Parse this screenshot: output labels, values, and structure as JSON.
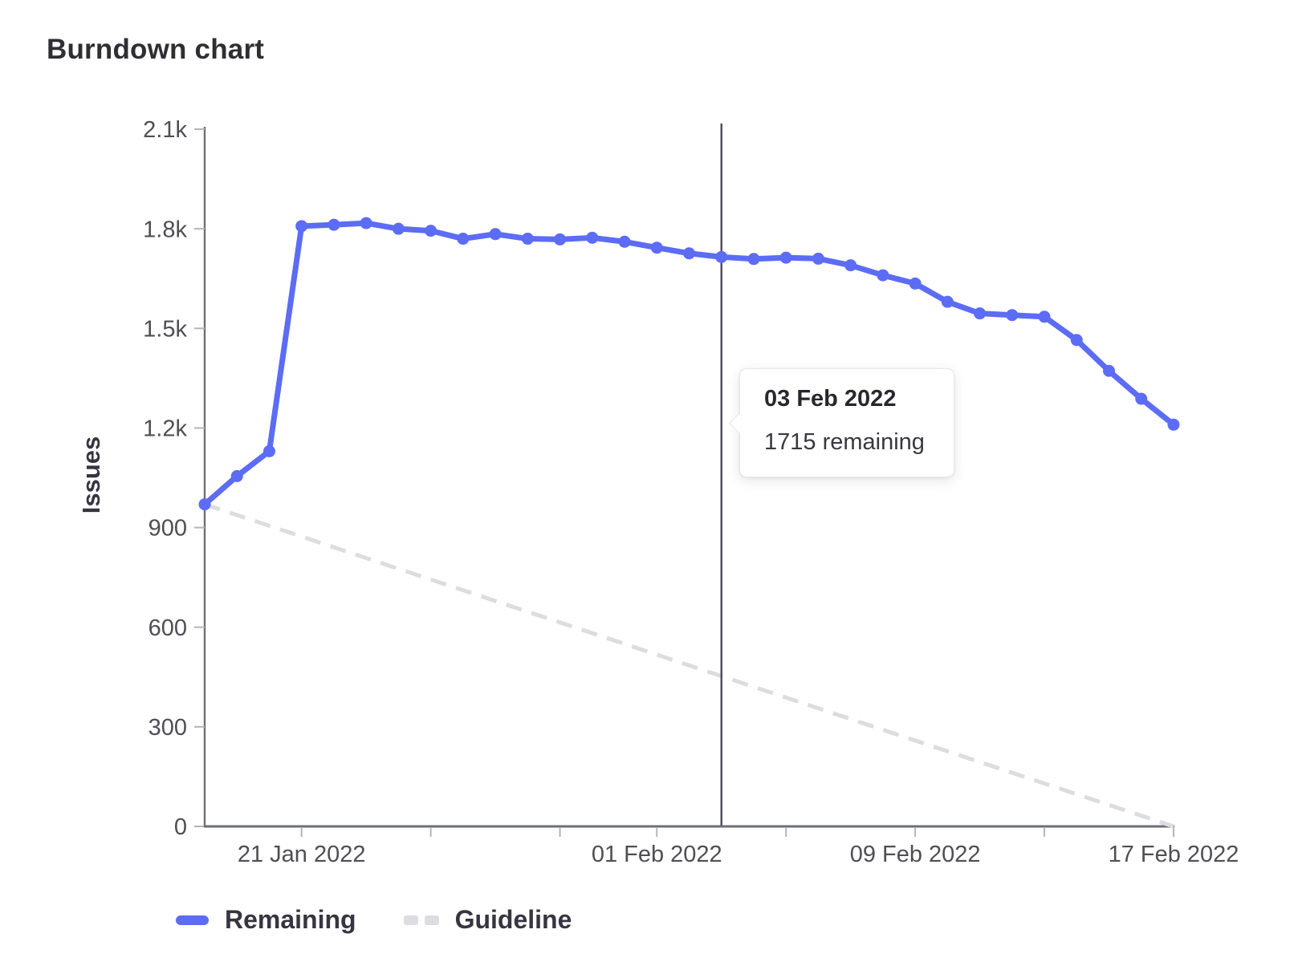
{
  "page": {
    "title": "Burndown chart"
  },
  "chart_data": {
    "type": "line",
    "title": "Burndown chart",
    "xlabel": "",
    "ylabel": "Issues",
    "ylim": [
      0,
      2100
    ],
    "grid": false,
    "legend_position": "bottom-left",
    "y_ticks": [
      {
        "value": 0,
        "label": "0"
      },
      {
        "value": 300,
        "label": "300"
      },
      {
        "value": 600,
        "label": "600"
      },
      {
        "value": 900,
        "label": "900"
      },
      {
        "value": 1200,
        "label": "1.2k"
      },
      {
        "value": 1500,
        "label": "1.5k"
      },
      {
        "value": 1800,
        "label": "1.8k"
      },
      {
        "value": 2100,
        "label": "2.1k"
      }
    ],
    "x": [
      "18 Jan 2022",
      "19 Jan 2022",
      "20 Jan 2022",
      "21 Jan 2022",
      "22 Jan 2022",
      "23 Jan 2022",
      "24 Jan 2022",
      "25 Jan 2022",
      "26 Jan 2022",
      "27 Jan 2022",
      "28 Jan 2022",
      "29 Jan 2022",
      "30 Jan 2022",
      "31 Jan 2022",
      "01 Feb 2022",
      "02 Feb 2022",
      "03 Feb 2022",
      "04 Feb 2022",
      "05 Feb 2022",
      "06 Feb 2022",
      "07 Feb 2022",
      "08 Feb 2022",
      "09 Feb 2022",
      "10 Feb 2022",
      "11 Feb 2022",
      "12 Feb 2022",
      "13 Feb 2022",
      "14 Feb 2022",
      "15 Feb 2022",
      "16 Feb 2022",
      "17 Feb 2022"
    ],
    "x_tick_indices": [
      3,
      7,
      11,
      14,
      18,
      22,
      26,
      30
    ],
    "x_labeled_ticks": [
      {
        "index": 3,
        "label": "21 Jan 2022"
      },
      {
        "index": 14,
        "label": "01 Feb 2022"
      },
      {
        "index": 22,
        "label": "09 Feb 2022"
      },
      {
        "index": 30,
        "label": "17 Feb 2022"
      }
    ],
    "series": [
      {
        "name": "Remaining",
        "style": "solid",
        "color": "#5c6cf4",
        "values": [
          970,
          1055,
          1130,
          1808,
          1812,
          1817,
          1800,
          1794,
          1770,
          1784,
          1770,
          1768,
          1773,
          1761,
          1743,
          1726,
          1715,
          1709,
          1713,
          1710,
          1690,
          1660,
          1635,
          1580,
          1545,
          1540,
          1535,
          1465,
          1372,
          1288,
          1210
        ]
      },
      {
        "name": "Guideline",
        "style": "dashed",
        "color": "#dcdce1",
        "endpoints": [
          {
            "index": 0,
            "value": 970
          },
          {
            "index": 30,
            "value": 0
          }
        ]
      }
    ],
    "marker": {
      "index": 16,
      "date": "03 Feb 2022",
      "value": 1715
    }
  },
  "tooltip": {
    "title": "03 Feb 2022",
    "body": "1715 remaining"
  },
  "legend": {
    "items": [
      {
        "label": "Remaining",
        "swatch": "solid-blue"
      },
      {
        "label": "Guideline",
        "swatch": "dashed-gray"
      }
    ]
  },
  "colors": {
    "remaining_blue": "#5c6cf4",
    "guideline_gray": "#dcdce1",
    "axis_dark": "#6e6e78",
    "tick_light": "#b4b4bc",
    "tick_label": "#4f4e55",
    "marker_line": "#4c4c55",
    "title_text": "#2f2e33",
    "legend_text": "#363540"
  }
}
